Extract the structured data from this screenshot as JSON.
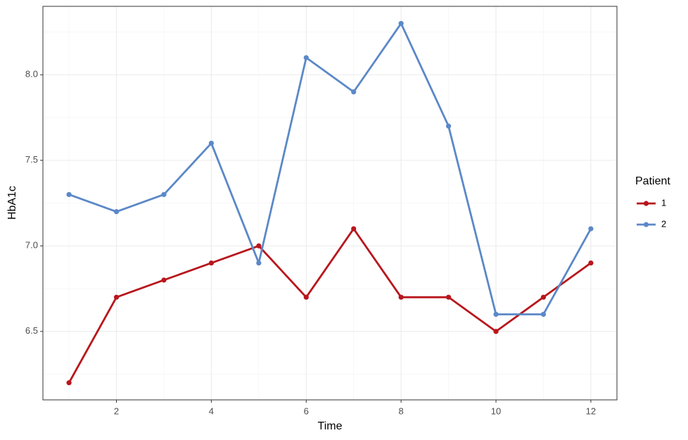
{
  "chart_data": {
    "type": "line",
    "x": [
      1,
      2,
      3,
      4,
      5,
      6,
      7,
      8,
      9,
      10,
      11,
      12
    ],
    "series": [
      {
        "name": "1",
        "color": "#b8161c",
        "values": [
          6.2,
          6.7,
          6.8,
          6.9,
          7.0,
          6.7,
          7.1,
          6.7,
          6.7,
          6.5,
          6.7,
          6.9
        ]
      },
      {
        "name": "2",
        "color": "#5b88c8",
        "values": [
          7.3,
          7.2,
          7.3,
          7.6,
          6.9,
          8.1,
          7.9,
          8.3,
          7.7,
          6.6,
          6.6,
          7.1
        ]
      }
    ],
    "x_label": "Time",
    "y_label": "HbA1c",
    "legend_title": "Patient",
    "xlim": [
      0.45,
      12.55
    ],
    "xticks": [
      2,
      4,
      6,
      8,
      10,
      12
    ],
    "ylim": [
      6.1,
      8.4
    ],
    "yticks": [
      6.5,
      {
        "value": 7.0,
        "label": "7.0"
      },
      7.5,
      {
        "value": 8.0,
        "label": "8.0"
      }
    ],
    "grid": true,
    "legend": "right"
  }
}
